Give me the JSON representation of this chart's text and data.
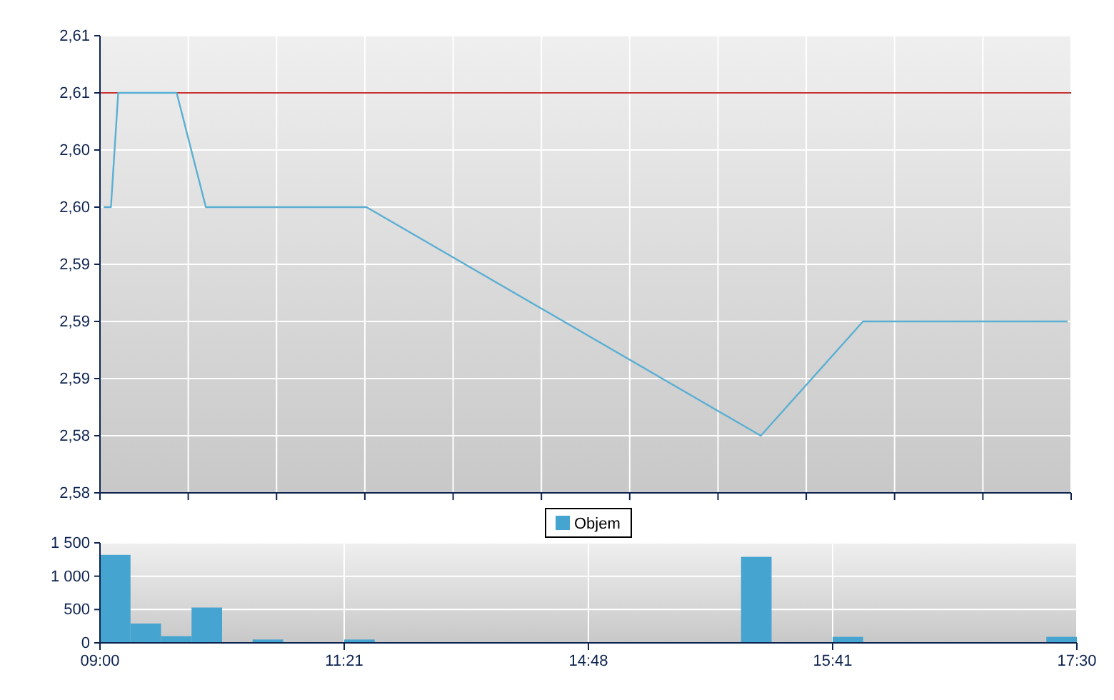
{
  "chart_data": [
    {
      "type": "line",
      "categories": [
        null,
        null,
        null,
        null,
        null,
        null,
        null,
        null,
        null,
        null,
        null,
        null,
        null,
        null,
        null,
        null,
        null,
        null,
        null,
        null,
        null,
        null,
        null,
        null,
        null,
        null,
        null,
        null,
        null,
        null,
        null,
        null,
        null,
        null,
        null,
        null,
        null,
        null,
        null,
        null,
        null,
        null,
        null,
        null,
        null,
        null,
        null,
        null,
        null,
        null,
        null,
        null,
        null,
        null,
        null,
        null,
        null,
        null,
        null,
        null,
        null,
        null,
        null,
        null,
        null,
        null,
        null,
        null,
        null,
        null,
        null,
        null,
        null,
        null,
        null,
        null,
        null,
        null,
        null,
        null,
        null,
        null,
        null,
        null,
        null,
        null,
        null,
        null,
        null,
        null,
        null,
        null,
        null,
        null,
        null,
        null,
        null,
        null,
        null,
        null,
        null,
        null,
        null,
        null,
        null,
        null,
        null,
        null,
        null,
        null,
        null,
        null,
        null,
        null,
        null,
        null,
        null,
        null,
        null,
        null,
        null,
        null,
        null,
        null,
        null,
        null,
        null,
        null,
        null,
        null,
        null,
        null,
        null
      ],
      "ylim": [
        2.58,
        2.61
      ],
      "yticks": [
        {
          "value": 2.58,
          "label": "2,58"
        },
        {
          "value": 2.58375,
          "label": "2,58"
        },
        {
          "value": 2.5875,
          "label": "2,59"
        },
        {
          "value": 2.59125,
          "label": "2,59"
        },
        {
          "value": 2.595,
          "label": "2,59"
        },
        {
          "value": 2.59875,
          "label": "2,60"
        },
        {
          "value": 2.6025,
          "label": "2,60"
        },
        {
          "value": 2.60625,
          "label": "2,61"
        },
        {
          "value": 2.61,
          "label": "2,61"
        }
      ],
      "series": [
        {
          "color": "#5aafd3",
          "values": [
            2.59875,
            2.59875,
            2.60625,
            null,
            null,
            null,
            null,
            null,
            null,
            null,
            2.60625,
            null,
            null,
            null,
            2.59875,
            null,
            null,
            null,
            null,
            null,
            null,
            null,
            null,
            null,
            null,
            null,
            null,
            null,
            null,
            null,
            null,
            null,
            null,
            null,
            null,
            null,
            2.59875,
            null,
            null,
            null,
            null,
            null,
            null,
            null,
            null,
            null,
            null,
            null,
            null,
            null,
            null,
            null,
            null,
            null,
            null,
            null,
            null,
            null,
            null,
            null,
            null,
            null,
            null,
            null,
            null,
            null,
            null,
            null,
            null,
            null,
            null,
            null,
            null,
            null,
            null,
            null,
            null,
            null,
            null,
            null,
            null,
            null,
            null,
            null,
            null,
            null,
            null,
            null,
            null,
            null,
            2.58375,
            null,
            null,
            null,
            null,
            null,
            null,
            null,
            null,
            null,
            null,
            null,
            null,
            null,
            2.59125,
            null,
            null,
            null,
            null,
            null,
            null,
            null,
            null,
            null,
            null,
            null,
            null,
            null,
            null,
            null,
            null,
            null,
            null,
            null,
            null,
            null,
            null,
            null,
            null,
            null,
            null,
            null,
            2.59125
          ]
        }
      ],
      "ref_lines": [
        {
          "axis": "y",
          "value": 2.60625,
          "color": "#c83232"
        }
      ],
      "grid": true,
      "tick_labels": "y"
    },
    {
      "type": "bar",
      "categories": [
        "09:00",
        null,
        null,
        null,
        null,
        null,
        null,
        null,
        "11:21",
        null,
        null,
        null,
        null,
        null,
        null,
        null,
        "14:48",
        null,
        null,
        null,
        null,
        null,
        null,
        null,
        "15:41",
        null,
        null,
        null,
        null,
        null,
        null,
        null,
        "17:30"
      ],
      "ylim": [
        0,
        1500
      ],
      "yticks": [
        0,
        500,
        {
          "value": 1000,
          "label": "1 000"
        },
        {
          "value": 1500,
          "label": "1 500"
        }
      ],
      "series": [
        {
          "name": "Objem",
          "color": "#46a5d0",
          "values": [
            1320,
            290,
            100,
            530,
            null,
            50,
            null,
            null,
            50,
            null,
            null,
            null,
            null,
            null,
            null,
            null,
            null,
            null,
            null,
            null,
            null,
            1290,
            null,
            null,
            90,
            null,
            null,
            null,
            null,
            null,
            null,
            90,
            null
          ]
        }
      ],
      "grid": true,
      "legend": "top"
    }
  ]
}
